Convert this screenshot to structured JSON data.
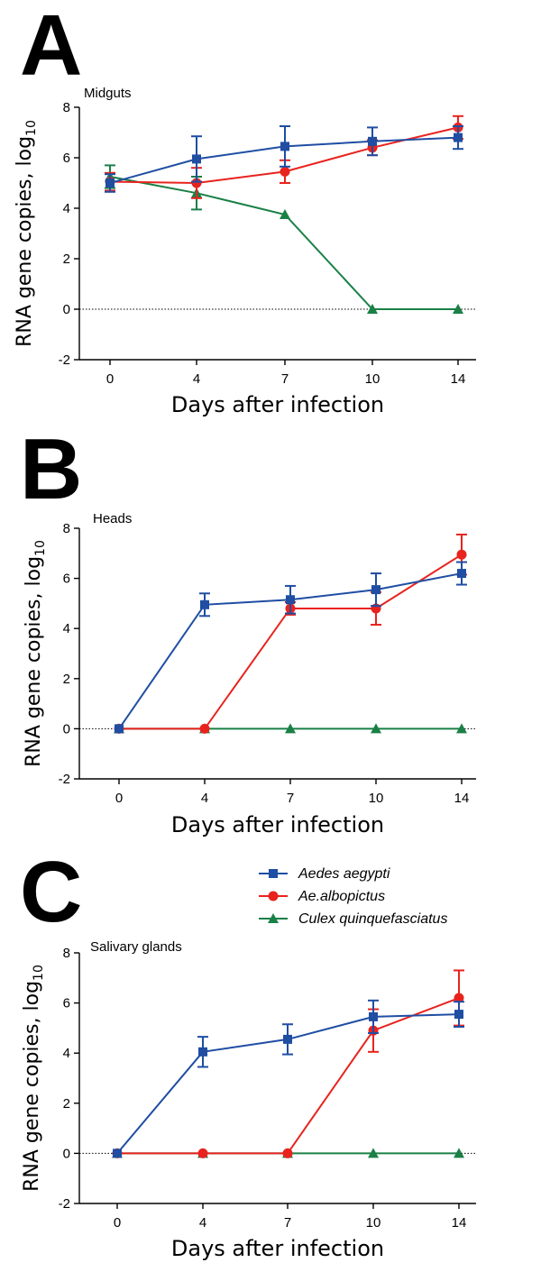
{
  "series_meta": [
    {
      "name": "Aedes aegypti",
      "color": "#1f4ea3",
      "marker": "square"
    },
    {
      "name": "Ae.albopictus",
      "color": "#e8231e",
      "marker": "circle"
    },
    {
      "name": "Culex quinquefasciatus",
      "color": "#1a8046",
      "marker": "triangle"
    }
  ],
  "chart_data": [
    {
      "type": "line",
      "panel_label": "A",
      "title": "Midguts",
      "xlabel": "Days after infection",
      "ylabel": "RNA gene copies, log",
      "ylabel_subscript": "10",
      "x": [
        0,
        4,
        7,
        10,
        14
      ],
      "ylim": [
        -2,
        8
      ],
      "yticks": [
        -2,
        0,
        2,
        4,
        6,
        8
      ],
      "reference_line": 0,
      "series": [
        {
          "name": "Aedes aegypti",
          "values": [
            5.0,
            5.95,
            6.45,
            6.65,
            6.8
          ],
          "error": [
            0.35,
            0.9,
            0.8,
            0.55,
            0.45
          ]
        },
        {
          "name": "Ae.albopictus",
          "values": [
            5.05,
            5.0,
            5.45,
            6.4,
            7.2
          ],
          "error": [
            0.35,
            0.6,
            0.45,
            0.3,
            0.45
          ]
        },
        {
          "name": "Culex quinquefasciatus",
          "values": [
            5.25,
            4.6,
            3.75,
            0,
            0
          ],
          "error": [
            0.45,
            0.65,
            0,
            0,
            0
          ]
        }
      ]
    },
    {
      "type": "line",
      "panel_label": "B",
      "title": "Heads",
      "xlabel": "Days after infection",
      "ylabel": "RNA gene copies, log",
      "ylabel_subscript": "10",
      "x": [
        0,
        4,
        7,
        10,
        14
      ],
      "ylim": [
        -2,
        8
      ],
      "yticks": [
        -2,
        0,
        2,
        4,
        6,
        8
      ],
      "reference_line": 0,
      "series": [
        {
          "name": "Aedes aegypti",
          "values": [
            0,
            4.95,
            5.15,
            5.55,
            6.2
          ],
          "error": [
            0,
            0.45,
            0.55,
            0.65,
            0.45
          ]
        },
        {
          "name": "Ae.albopictus",
          "values": [
            0,
            0,
            4.8,
            4.8,
            6.95
          ],
          "error": [
            0,
            0,
            0.25,
            0.65,
            0.8
          ]
        },
        {
          "name": "Culex quinquefasciatus",
          "values": [
            0,
            0,
            0,
            0,
            0
          ],
          "error": [
            0,
            0,
            0,
            0,
            0
          ]
        }
      ]
    },
    {
      "type": "line",
      "panel_label": "C",
      "title": "Salivary glands",
      "xlabel": "Days after infection",
      "ylabel": "RNA gene copies, log",
      "ylabel_subscript": "10",
      "x": [
        0,
        4,
        7,
        10,
        14
      ],
      "ylim": [
        -2,
        8
      ],
      "yticks": [
        -2,
        0,
        2,
        4,
        6,
        8
      ],
      "reference_line": 0,
      "legend": "top-right",
      "series": [
        {
          "name": "Aedes aegypti",
          "values": [
            0,
            4.05,
            4.55,
            5.45,
            5.55
          ],
          "error": [
            0,
            0.6,
            0.6,
            0.65,
            0.5
          ]
        },
        {
          "name": "Ae.albopictus",
          "values": [
            0,
            0,
            0,
            4.9,
            6.2
          ],
          "error": [
            0,
            0,
            0,
            0.85,
            1.1
          ]
        },
        {
          "name": "Culex quinquefasciatus",
          "values": [
            0,
            0,
            0,
            0,
            0
          ],
          "error": [
            0,
            0,
            0,
            0,
            0
          ]
        }
      ]
    }
  ]
}
